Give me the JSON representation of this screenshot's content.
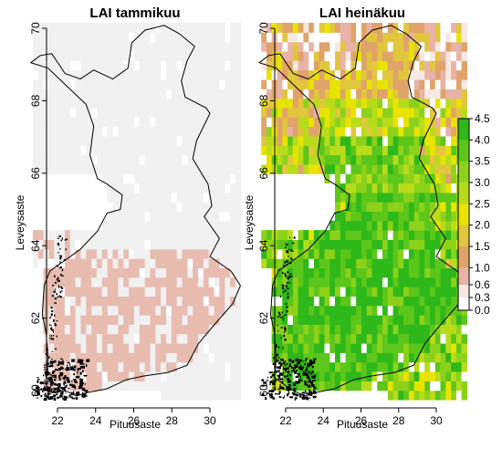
{
  "figure": {
    "panels": [
      {
        "title": "LAI tammikuu",
        "xlabel": "Pituusaste",
        "ylabel": "Leveysaste",
        "x_ticks": [
          22,
          24,
          26,
          28,
          30
        ],
        "y_ticks": [
          60,
          62,
          64,
          66,
          68,
          70
        ],
        "xlim": [
          20.5,
          31.6
        ],
        "ylim": [
          59.7,
          70.1
        ]
      },
      {
        "title": "LAI heinäkuu",
        "xlabel": "Pituusaste",
        "ylabel": "Leveysaste",
        "x_ticks": [
          22,
          24,
          26,
          28,
          30
        ],
        "y_ticks": [
          60,
          62,
          64,
          66,
          68,
          70
        ],
        "xlim": [
          20.5,
          31.6
        ],
        "ylim": [
          59.7,
          70.1
        ]
      }
    ],
    "legend": {
      "breaks": [
        0.0,
        0.3,
        0.6,
        1.0,
        1.5,
        2.0,
        2.5,
        3.0,
        3.5,
        4.0,
        4.5
      ],
      "labels": [
        "0.0",
        "0.3",
        "0.6",
        "1.0",
        "1.5",
        "2.0",
        "2.5",
        "3.0",
        "3.5",
        "4.0",
        "4.5"
      ],
      "colors": [
        "#ffffff",
        "#f6e8e2",
        "#e8b3a8",
        "#e0a36a",
        "#e2c63e",
        "#e8e400",
        "#b8dc1c",
        "#8cd21a",
        "#5cc61a",
        "#2eb81a",
        "#10a810"
      ]
    },
    "colors": {
      "january_base": "#f1f1f1",
      "january_patch": "#e8bcb0",
      "border": "#000000"
    }
  }
}
